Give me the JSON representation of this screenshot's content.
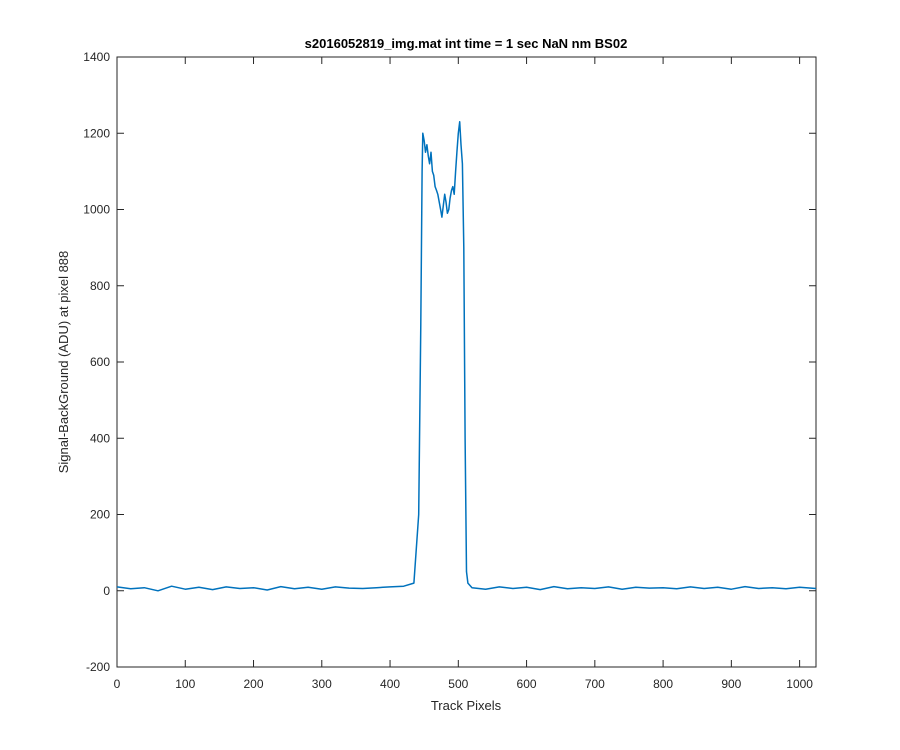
{
  "chart_data": {
    "type": "line",
    "title": "s2016052819_img.mat int time = 1 sec  NaN nm BS02",
    "xlabel": "Track Pixels",
    "ylabel": "Signal-BackGround (ADU) at pixel 888",
    "xlim": [
      0,
      1024
    ],
    "ylim": [
      -200,
      1400
    ],
    "xticks": [
      0,
      100,
      200,
      300,
      400,
      500,
      600,
      700,
      800,
      900,
      1000
    ],
    "yticks": [
      -200,
      0,
      200,
      400,
      600,
      800,
      1000,
      1200,
      1400
    ],
    "grid": false,
    "line_color": "#0072BD",
    "series": [
      {
        "x": [
          0,
          20,
          40,
          60,
          80,
          100,
          120,
          140,
          160,
          180,
          200,
          220,
          240,
          260,
          280,
          300,
          320,
          340,
          360,
          380,
          400,
          420,
          435,
          442,
          445,
          447,
          448,
          450,
          452,
          454,
          456,
          458,
          460,
          462,
          464,
          466,
          468,
          470,
          472,
          474,
          476,
          478,
          480,
          482,
          484,
          486,
          488,
          490,
          492,
          494,
          496,
          498,
          500,
          502,
          504,
          506,
          508,
          510,
          512,
          514,
          520,
          540,
          560,
          580,
          600,
          620,
          640,
          660,
          680,
          700,
          720,
          740,
          760,
          780,
          800,
          820,
          840,
          860,
          880,
          900,
          920,
          940,
          960,
          980,
          1000,
          1024
        ],
        "y": [
          10,
          5,
          8,
          0,
          12,
          4,
          9,
          3,
          10,
          6,
          8,
          2,
          11,
          5,
          9,
          4,
          10,
          7,
          6,
          8,
          10,
          12,
          20,
          200,
          700,
          1100,
          1200,
          1180,
          1150,
          1170,
          1140,
          1120,
          1150,
          1100,
          1090,
          1060,
          1050,
          1040,
          1020,
          1000,
          980,
          1010,
          1040,
          1020,
          990,
          1000,
          1030,
          1050,
          1060,
          1040,
          1100,
          1150,
          1200,
          1230,
          1170,
          1120,
          900,
          400,
          50,
          20,
          8,
          4,
          10,
          6,
          9,
          3,
          11,
          5,
          8,
          6,
          10,
          4,
          9,
          7,
          8,
          5,
          10,
          6,
          9,
          4,
          11,
          6,
          8,
          5,
          9,
          6
        ]
      }
    ]
  }
}
